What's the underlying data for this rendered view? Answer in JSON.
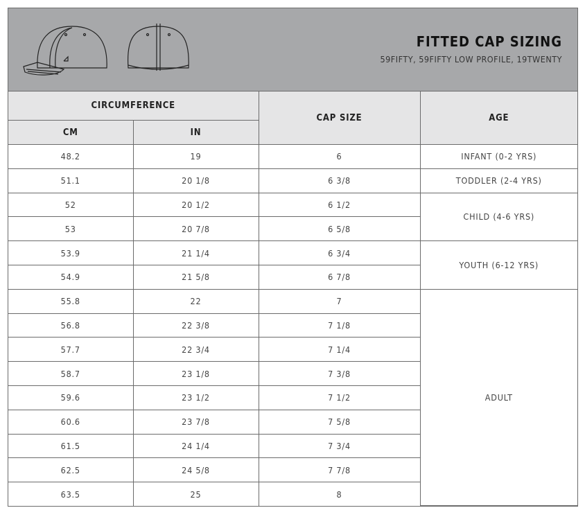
{
  "header": {
    "title": "FITTED CAP SIZING",
    "subtitle": "59FIFTY, 59FIFTY LOW PROFILE, 19TWENTY"
  },
  "columns": {
    "circumference": "CIRCUMFERENCE",
    "cm": "CM",
    "in": "IN",
    "cap_size": "CAP SIZE",
    "age": "AGE"
  },
  "rows": [
    {
      "cm": "48.2",
      "in": "19",
      "size": "6"
    },
    {
      "cm": "51.1",
      "in": "20 1/8",
      "size": "6 3/8"
    },
    {
      "cm": "52",
      "in": "20 1/2",
      "size": "6 1/2"
    },
    {
      "cm": "53",
      "in": "20 7/8",
      "size": "6 5/8"
    },
    {
      "cm": "53.9",
      "in": "21 1/4",
      "size": "6 3/4"
    },
    {
      "cm": "54.9",
      "in": "21 5/8",
      "size": "6 7/8"
    },
    {
      "cm": "55.8",
      "in": "22",
      "size": "7"
    },
    {
      "cm": "56.8",
      "in": "22 3/8",
      "size": "7 1/8"
    },
    {
      "cm": "57.7",
      "in": "22 3/4",
      "size": "7 1/4"
    },
    {
      "cm": "58.7",
      "in": "23 1/8",
      "size": "7 3/8"
    },
    {
      "cm": "59.6",
      "in": "23 1/2",
      "size": "7 1/2"
    },
    {
      "cm": "60.6",
      "in": "23 7/8",
      "size": "7 5/8"
    },
    {
      "cm": "61.5",
      "in": "24 1/4",
      "size": "7 3/4"
    },
    {
      "cm": "62.5",
      "in": "24 5/8",
      "size": "7 7/8"
    },
    {
      "cm": "63.5",
      "in": "25",
      "size": "8"
    }
  ],
  "age_groups": [
    {
      "label": "INFANT (0-2 YRS)",
      "rows": 1
    },
    {
      "label": "TODDLER (2-4 YRS)",
      "rows": 1
    },
    {
      "label": "CHILD (4-6 YRS)",
      "rows": 2
    },
    {
      "label": "YOUTH (6-12 YRS)",
      "rows": 2
    },
    {
      "label": "ADULT",
      "rows": 9
    }
  ]
}
